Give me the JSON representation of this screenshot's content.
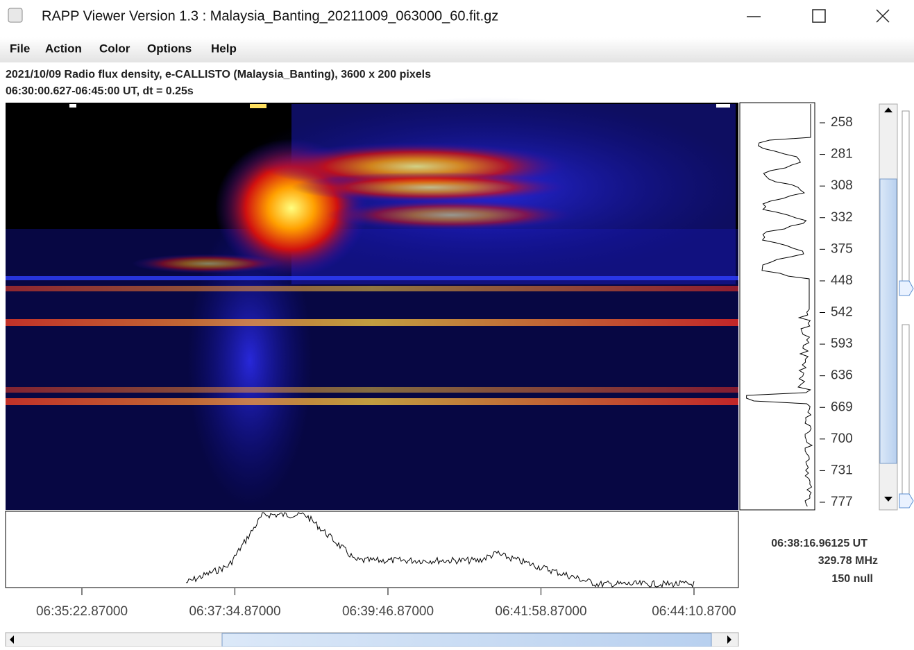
{
  "window": {
    "title": "RAPP Viewer Version 1.3 : Malaysia_Banting_20211009_063000_60.fit.gz"
  },
  "menu": [
    "File",
    "Action",
    "Color",
    "Options",
    "Help"
  ],
  "header": {
    "line1": "2021/10/09  Radio flux density, e-CALLISTO (Malaysia_Banting),  3600 x 200 pixels",
    "line2": "06:30:00.627-06:45:00 UT,  dt = 0.25s"
  },
  "frequency_axis": [
    "258",
    "281",
    "308",
    "332",
    "375",
    "448",
    "542",
    "593",
    "636",
    "669",
    "700",
    "731",
    "777"
  ],
  "time_axis": [
    "06:35:22.87000",
    "06:37:34.87000",
    "06:39:46.87000",
    "06:41:58.87000",
    "06:44:10.8700"
  ],
  "readout": {
    "time": "06:38:16.96125 UT",
    "frequency": "329.78 MHz",
    "value": "150 null"
  }
}
